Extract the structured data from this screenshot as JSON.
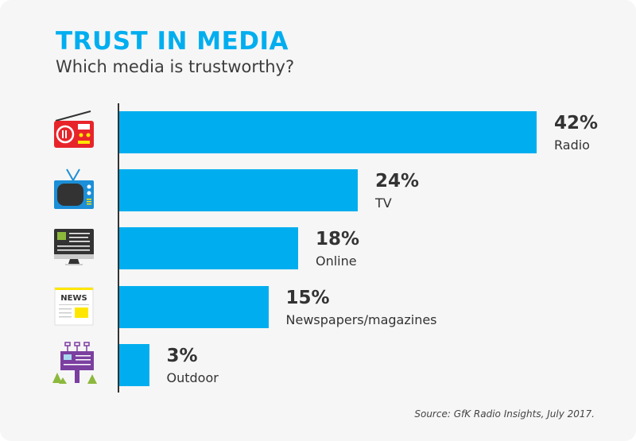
{
  "chart_data": {
    "type": "bar",
    "orientation": "horizontal",
    "title": "TRUST IN MEDIA",
    "subtitle": "Which media is trustworthy?",
    "categories": [
      "Radio",
      "TV",
      "Online",
      "Newspapers/magazines",
      "Outdoor"
    ],
    "values": [
      42,
      24,
      18,
      15,
      3
    ],
    "value_labels": [
      "42%",
      "24%",
      "18%",
      "15%",
      "3%"
    ],
    "icons": [
      "radio-icon",
      "tv-icon",
      "monitor-icon",
      "newspaper-icon",
      "billboard-icon"
    ],
    "icon_text": {
      "newspaper": "NEWS"
    },
    "unit": "%",
    "xlim": [
      0,
      42
    ],
    "bar_color": "#00aeef",
    "title_color": "#00aeef",
    "source": "Source: GfK Radio Insights, July 2017."
  }
}
